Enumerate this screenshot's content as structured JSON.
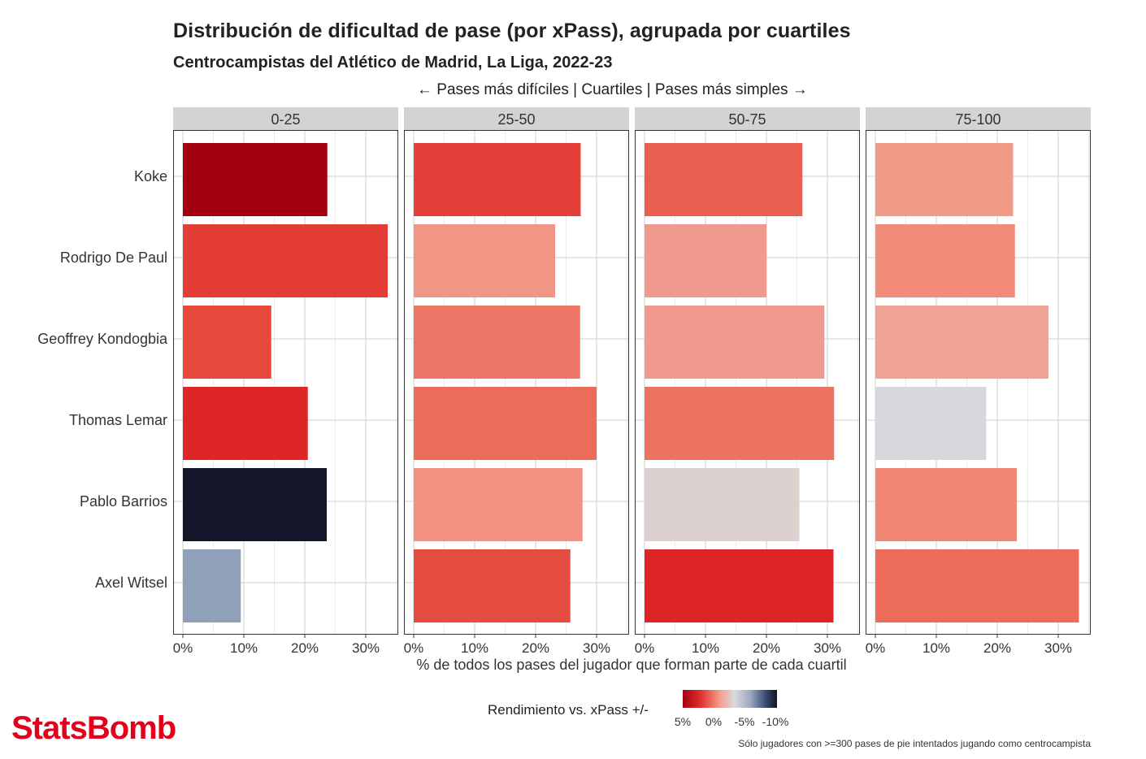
{
  "title": "Distribución de dificultad de pase (por xPass), agrupada por cuartiles",
  "subtitle": "Centrocampistas del Atlético de Madrid, La Liga, 2022-23",
  "direction_label": "← Pases más difíciles | Cuartiles | Pases más simples →",
  "logo_text": "StatsBomb",
  "caption": "Sólo jugadores con >=300 pases de pie intentados jugando como centrocampista",
  "legend": {
    "title": "Rendimiento vs. xPass +/-",
    "ticks": [
      "5%",
      "0%",
      "-5%",
      "-10%"
    ]
  },
  "chart_data": {
    "type": "bar",
    "orientation": "horizontal",
    "facets": [
      "0-25",
      "25-50",
      "50-75",
      "75-100"
    ],
    "categories": [
      "Koke",
      "Rodrigo De Paul",
      "Geoffrey Kondogbia",
      "Thomas Lemar",
      "Pablo Barrios",
      "Axel Witsel"
    ],
    "xlabel": "% de todos los pases del jugador que forman parte de cada cuartil",
    "x_ticks": [
      "0%",
      "10%",
      "20%",
      "30%"
    ],
    "xlim": [
      0,
      35
    ],
    "grid": true,
    "legend_placement": "bottom",
    "values": {
      "0-25": [
        23.7,
        33.6,
        14.5,
        20.5,
        23.6,
        9.5
      ],
      "25-50": [
        27.4,
        23.2,
        27.3,
        30.0,
        27.7,
        25.7
      ],
      "50-75": [
        25.9,
        20.0,
        29.5,
        31.1,
        25.4,
        31.0
      ],
      "75-100": [
        22.6,
        22.9,
        28.4,
        18.2,
        23.2,
        33.4
      ]
    },
    "colors": {
      "0-25": [
        "#a3000f",
        "#e33d35",
        "#e54a3d",
        "#de2626",
        "#131628",
        "#8fa0b8"
      ],
      "25-50": [
        "#e3403a",
        "#f19585",
        "#ec7565",
        "#ec6c5c",
        "#f39282",
        "#e54c40"
      ],
      "50-75": [
        "#e95e50",
        "#f09a8d",
        "#f09a8d",
        "#ec7262",
        "#ddd1d0",
        "#dd2527"
      ],
      "75-100": [
        "#f29a88",
        "#f28b78",
        "#f0a394",
        "#d7d8db",
        "#f08674",
        "#ec6b5b"
      ]
    }
  }
}
